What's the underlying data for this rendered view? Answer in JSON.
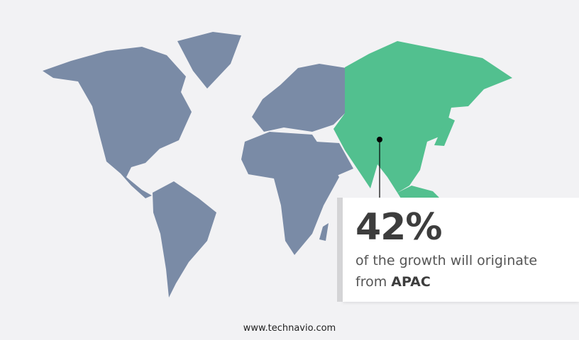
{
  "colors": {
    "background": "#f2f2f4",
    "land": "#7a8ba6",
    "highlight_region": "#52c08f",
    "marker": "#000000"
  },
  "map": {
    "highlighted_region": "APAC"
  },
  "callout": {
    "value": "42%",
    "text": "of the growth will originate",
    "from_label": "from",
    "region": "APAC"
  },
  "footer": {
    "website": "www.technavio.com"
  }
}
